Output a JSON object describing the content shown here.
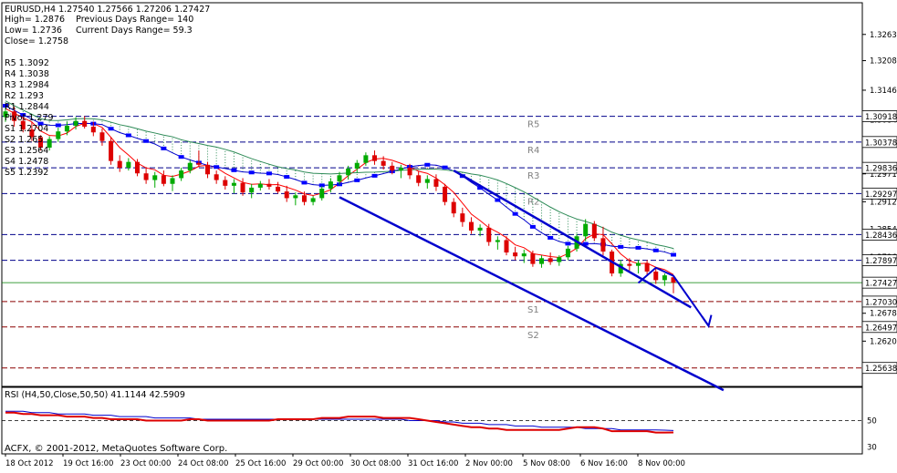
{
  "header": {
    "symbol_line": "EURUSD,H4  1.27540 1.27566 1.27206 1.27427",
    "stats": [
      "High= 1.2876    Previous Days Range= 140",
      "Low= 1.2736     Current Days Range= 59.3",
      "Close= 1.2758"
    ],
    "pivot_list": [
      "R5 1.3092",
      "R4 1.3038",
      "R3 1.2984",
      "R2 1.293",
      "R1 1.2844",
      "Pivot 1.279",
      "S1 1.2704",
      "S2 1.265",
      "S3 1.2564",
      "S4 1.2478",
      "S5 1.2392"
    ]
  },
  "chart_data": {
    "type": "candlestick",
    "symbol": "EURUSD",
    "timeframe": "H4",
    "ohlc_last": {
      "open": 1.2754,
      "high": 1.27566,
      "low": 1.27206,
      "close": 1.27427
    },
    "price_axis": {
      "ylim": [
        1.2525,
        1.333
      ],
      "ticks": [
        "1.32635",
        "1.32085",
        "1.31465",
        "1.30845",
        "1.29710",
        "1.29125",
        "1.28545",
        "1.27965",
        "1.27385",
        "1.26785",
        "1.26200",
        "1.25620"
      ],
      "price_tags": [
        {
          "text": "1.30918",
          "value": 1.30918
        },
        {
          "text": "1.30378",
          "value": 1.30378
        },
        {
          "text": "1.29836",
          "value": 1.29836
        },
        {
          "text": "1.29297",
          "value": 1.29297
        },
        {
          "text": "1.28436",
          "value": 1.28436
        },
        {
          "text": "1.27897",
          "value": 1.27897
        },
        {
          "text": "1.27427",
          "value": 1.27427
        },
        {
          "text": "1.27030",
          "value": 1.2703
        },
        {
          "text": "1.26497",
          "value": 1.26497
        },
        {
          "text": "1.25638",
          "value": 1.25638
        }
      ]
    },
    "pivot_levels": [
      {
        "label": "R5",
        "value": 1.30918
      },
      {
        "label": "R4",
        "value": 1.30378
      },
      {
        "label": "R3",
        "value": 1.29836
      },
      {
        "label": "R2",
        "value": 1.29297
      },
      {
        "label": "",
        "value": 1.28436
      },
      {
        "label": "",
        "value": 1.27897
      },
      {
        "label": "S1",
        "value": 1.2703
      },
      {
        "label": "S2",
        "value": 1.26497
      },
      {
        "label": "",
        "value": 1.25638
      }
    ],
    "time_axis": [
      "18 Oct 2012",
      "19 Oct 16:00",
      "23 Oct 00:00",
      "24 Oct 08:00",
      "25 Oct 16:00",
      "29 Oct 00:00",
      "30 Oct 08:00",
      "31 Oct 16:00",
      "2 Nov 00:00",
      "5 Nov 08:00",
      "6 Nov 16:00",
      "8 Nov 00:00"
    ],
    "candles": [
      [
        1.309,
        1.311,
        1.308,
        1.3102
      ],
      [
        1.3102,
        1.3112,
        1.307,
        1.3082
      ],
      [
        1.3082,
        1.309,
        1.3058,
        1.3064
      ],
      [
        1.3064,
        1.308,
        1.304,
        1.3048
      ],
      [
        1.3048,
        1.3052,
        1.302,
        1.3026
      ],
      [
        1.3026,
        1.305,
        1.302,
        1.3044
      ],
      [
        1.3044,
        1.3068,
        1.3038,
        1.306
      ],
      [
        1.306,
        1.308,
        1.3052,
        1.3072
      ],
      [
        1.3072,
        1.309,
        1.3064,
        1.3082
      ],
      [
        1.3082,
        1.3092,
        1.3066,
        1.307
      ],
      [
        1.307,
        1.308,
        1.305,
        1.3058
      ],
      [
        1.3058,
        1.3066,
        1.303,
        1.304
      ],
      [
        1.304,
        1.3048,
        1.299,
        1.2998
      ],
      [
        1.2998,
        1.301,
        1.2975,
        1.2984
      ],
      [
        1.2984,
        1.3004,
        1.2978,
        1.2996
      ],
      [
        1.2996,
        1.3002,
        1.2966,
        1.2972
      ],
      [
        1.2972,
        1.2985,
        1.295,
        1.2958
      ],
      [
        1.2958,
        1.2975,
        1.2942,
        1.2968
      ],
      [
        1.2968,
        1.2978,
        1.2945,
        1.295
      ],
      [
        1.295,
        1.2968,
        1.2935,
        1.2962
      ],
      [
        1.2962,
        1.2984,
        1.2956,
        1.2978
      ],
      [
        1.2978,
        1.3,
        1.2972,
        1.2994
      ],
      [
        1.2994,
        1.302,
        1.2985,
        1.299
      ],
      [
        1.299,
        1.2996,
        1.2962,
        1.297
      ],
      [
        1.297,
        1.2978,
        1.295,
        1.2958
      ],
      [
        1.2958,
        1.2966,
        1.2938,
        1.2946
      ],
      [
        1.2946,
        1.296,
        1.293,
        1.2952
      ],
      [
        1.2952,
        1.2962,
        1.2925,
        1.2932
      ],
      [
        1.2932,
        1.295,
        1.292,
        1.2942
      ],
      [
        1.2942,
        1.2956,
        1.2936,
        1.295
      ],
      [
        1.295,
        1.296,
        1.2938,
        1.2944
      ],
      [
        1.2944,
        1.2954,
        1.293,
        1.2934
      ],
      [
        1.2934,
        1.2946,
        1.2912,
        1.292
      ],
      [
        1.292,
        1.2932,
        1.2905,
        1.2926
      ],
      [
        1.2926,
        1.2934,
        1.2905,
        1.2912
      ],
      [
        1.2912,
        1.2925,
        1.2905,
        1.292
      ],
      [
        1.292,
        1.2945,
        1.2915,
        1.294
      ],
      [
        1.294,
        1.2962,
        1.2932,
        1.2955
      ],
      [
        1.2955,
        1.2975,
        1.2948,
        1.2968
      ],
      [
        1.2968,
        1.2988,
        1.296,
        1.2982
      ],
      [
        1.2982,
        1.3,
        1.2974,
        1.2994
      ],
      [
        1.2994,
        1.3016,
        1.2988,
        1.301
      ],
      [
        1.301,
        1.302,
        1.299,
        1.2998
      ],
      [
        1.2998,
        1.3008,
        1.298,
        1.2988
      ],
      [
        1.2988,
        1.2996,
        1.297,
        1.2978
      ],
      [
        1.2978,
        1.299,
        1.2962,
        1.2984
      ],
      [
        1.2984,
        1.2992,
        1.296,
        1.2968
      ],
      [
        1.2968,
        1.2976,
        1.2945,
        1.2952
      ],
      [
        1.2952,
        1.2968,
        1.294,
        1.296
      ],
      [
        1.296,
        1.297,
        1.2935,
        1.2944
      ],
      [
        1.2944,
        1.295,
        1.2905,
        1.2912
      ],
      [
        1.2912,
        1.292,
        1.288,
        1.2888
      ],
      [
        1.2888,
        1.29,
        1.286,
        1.287
      ],
      [
        1.287,
        1.288,
        1.2845,
        1.2852
      ],
      [
        1.2852,
        1.2865,
        1.284,
        1.2858
      ],
      [
        1.2858,
        1.2866,
        1.282,
        1.2828
      ],
      [
        1.2828,
        1.284,
        1.2812,
        1.2832
      ],
      [
        1.2832,
        1.284,
        1.28,
        1.2806
      ],
      [
        1.2806,
        1.2818,
        1.279,
        1.2798
      ],
      [
        1.2798,
        1.2812,
        1.2784,
        1.2804
      ],
      [
        1.2804,
        1.281,
        1.2776,
        1.2782
      ],
      [
        1.2782,
        1.28,
        1.2774,
        1.2794
      ],
      [
        1.2794,
        1.2806,
        1.278,
        1.2786
      ],
      [
        1.2786,
        1.28,
        1.2778,
        1.2796
      ],
      [
        1.2796,
        1.282,
        1.279,
        1.2814
      ],
      [
        1.2814,
        1.2845,
        1.2808,
        1.284
      ],
      [
        1.284,
        1.2876,
        1.283,
        1.2866
      ],
      [
        1.2866,
        1.2872,
        1.283,
        1.2836
      ],
      [
        1.2836,
        1.286,
        1.28,
        1.2808
      ],
      [
        1.2808,
        1.2812,
        1.2756,
        1.2762
      ],
      [
        1.2762,
        1.279,
        1.2755,
        1.2782
      ],
      [
        1.2782,
        1.2794,
        1.2768,
        1.2778
      ],
      [
        1.2778,
        1.279,
        1.2762,
        1.2784
      ],
      [
        1.2784,
        1.279,
        1.276,
        1.2766
      ],
      [
        1.2766,
        1.2772,
        1.274,
        1.2748
      ],
      [
        1.2748,
        1.2762,
        1.2736,
        1.2758
      ],
      [
        1.2754,
        1.27566,
        1.27206,
        1.27427
      ]
    ],
    "trend_channel": {
      "upper": [
        [
          51,
          1.2978
        ],
        [
          76,
          1.2712
        ]
      ],
      "lower": [
        [
          38,
          1.2922
        ],
        [
          76,
          1.257
        ]
      ],
      "forecast_path": [
        [
          72,
          1.2742
        ],
        [
          74,
          1.2774
        ],
        [
          76,
          1.2757
        ],
        [
          80,
          1.2652
        ]
      ]
    },
    "rsi": {
      "label": "RSI (H4,50,Close,50,50) 41.1144 42.5909",
      "ticks": [
        "50",
        "30"
      ],
      "ylim": [
        25,
        75
      ],
      "main": [
        56,
        56,
        55,
        55,
        54,
        54,
        54,
        53,
        53,
        53,
        52,
        52,
        51,
        51,
        51,
        51,
        50,
        50,
        50,
        50,
        50,
        51,
        51,
        50,
        50,
        50,
        50,
        50,
        50,
        50,
        50,
        51,
        51,
        51,
        51,
        51,
        52,
        52,
        52,
        53,
        53,
        53,
        53,
        52,
        52,
        52,
        52,
        51,
        50,
        49,
        48,
        47,
        46,
        45,
        45,
        44,
        44,
        43,
        43,
        43,
        43,
        43,
        43,
        43,
        44,
        45,
        45,
        45,
        44,
        42,
        42,
        42,
        42,
        42,
        41,
        41,
        41.1144
      ],
      "signal": [
        57,
        57,
        57,
        56,
        56,
        56,
        55,
        55,
        55,
        55,
        54,
        54,
        54,
        53,
        53,
        53,
        53,
        52,
        52,
        52,
        52,
        52,
        51,
        51,
        51,
        51,
        51,
        51,
        51,
        51,
        51,
        51,
        51,
        51,
        51,
        51,
        51,
        51,
        51,
        51,
        51,
        51,
        51,
        51,
        51,
        51,
        50,
        50,
        50,
        50,
        49,
        49,
        48,
        48,
        48,
        47,
        47,
        47,
        46,
        46,
        46,
        45,
        45,
        45,
        45,
        45,
        44,
        44,
        44,
        44,
        43,
        43,
        43,
        43,
        43,
        42.8,
        42.5909
      ]
    },
    "footer_text": "ACFX, © 2001-2012, MetaQuotes Software Corp."
  }
}
